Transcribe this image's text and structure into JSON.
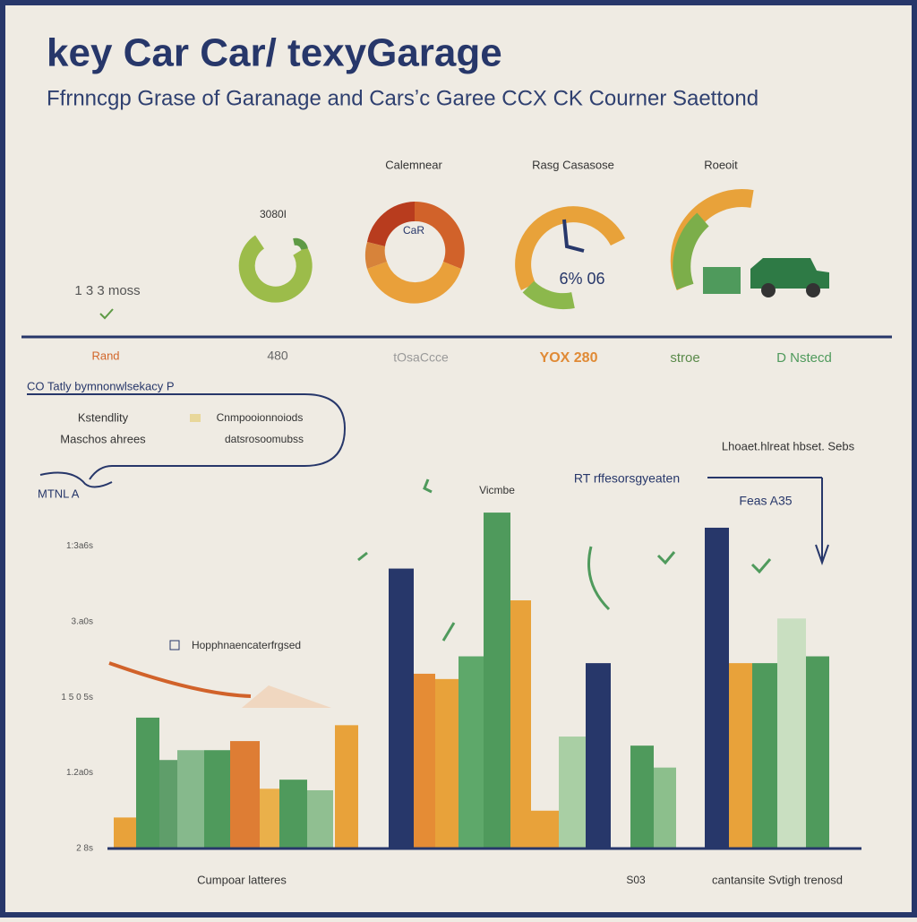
{
  "header": {
    "title": "key Car Car/ texyGarage",
    "subtitle": "Ffrnncgp Grase of Garanage and Carsʼc Garee CCX CK Courner Saettond"
  },
  "gauges": {
    "labels": [
      "Calemnear",
      "Rasg Casasose",
      "Roeoit"
    ],
    "small_label": "3080I",
    "donut_center": "CaR",
    "gauge_center": "6% 06",
    "left_stat": "1 3 3 moss"
  },
  "row_labels": [
    "Rand",
    "480",
    "tOsaCcce",
    "YOX 280",
    "stroe",
    "D Nstecd"
  ],
  "legend": {
    "title": "CO Tatly bymnonwlsekacy P",
    "items": [
      "Kstendlity",
      "Maschos ahrees",
      "Cnmpooionnoiods",
      "datsrosoomubss"
    ]
  },
  "chart_data": {
    "type": "bar",
    "values": [
      0.41,
      1.73,
      1.17,
      1.3,
      1.3,
      1.42,
      0.79,
      0.91,
      0.77,
      1.63,
      3.7,
      2.31,
      2.24,
      2.54,
      4.44,
      3.28,
      0.5,
      1.48,
      2.45,
      1.36,
      1.07,
      4.24,
      2.45,
      2.45,
      3.04,
      2.54
    ],
    "colors": [
      "#e8a23a",
      "#4f9a5c",
      "#5f9e6a",
      "#86b98c",
      "#4f9a5c",
      "#de7d34",
      "#eab04a",
      "#4f9a5c",
      "#90bf91",
      "#e8a23a",
      "#27376a",
      "#e58c35",
      "#e8a23a",
      "#5ea86a",
      "#4f9a5c",
      "#e8a23a",
      "#e8a23a",
      "#a9cfa4",
      "#27376a",
      "#4f9a5c",
      "#8cbf8c",
      "#27376a",
      "#e8a23a",
      "#4f9a5c",
      "#c9dfc1",
      "#4f9a5c"
    ],
    "ylim": [
      0,
      4.5
    ],
    "yticks": [
      {
        "value": 0,
        "label": "2 8s"
      },
      {
        "value": 1,
        "label": "1.2a0s"
      },
      {
        "value": 2,
        "label": "1 5 0 5s"
      },
      {
        "value": 3,
        "label": "3.a0s"
      },
      {
        "value": 4,
        "label": "1:3a6s"
      }
    ],
    "grid": false,
    "annotations": [
      "MTNL A",
      "Vicmbe",
      "RT rffesorsgyeaten",
      "Lhoaet.hlreat hbset. Sebs",
      "Feas A35",
      "Hopphnaencaterfrgsed",
      "Cumpoar latteres",
      "S03",
      "cantansite Svtigh trenosd"
    ]
  }
}
